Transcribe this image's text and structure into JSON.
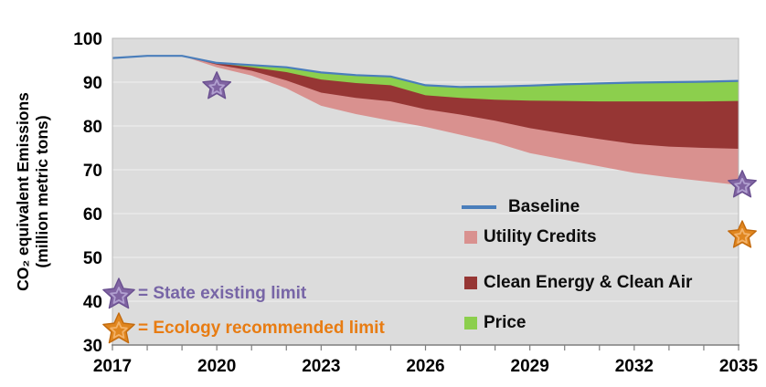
{
  "figure": {
    "y_axis_title_line1": "CO₂ equivalent Emissions",
    "y_axis_title_line2": "(million metric tons)"
  },
  "legend": {
    "baseline": "Baseline",
    "utility": "Utility Credits",
    "clean": "Clean Energy & Clean Air",
    "price": "Price"
  },
  "annotations": {
    "state_limit": "= State existing limit",
    "ecology_limit": "= Ecology recommended limit"
  },
  "colors": {
    "baseline": "#4a7ebb",
    "utility": "#d9918f",
    "clean": "#963634",
    "price": "#8ccf4d",
    "plot_bg": "#dcdcdc",
    "gridline": "#ebebeb",
    "axis": "#7f7f7f",
    "border": "#b8b8b8",
    "tick_text": "#000000",
    "purple_fill": "#8064a2",
    "purple_edge": "#6a5090",
    "purple_highlight": "#b1a0d0",
    "orange_fill": "#e0861f",
    "orange_edge": "#c26a0e",
    "orange_highlight": "#f3b269",
    "text_purple": "#7765a6",
    "text_orange": "#e87c12"
  },
  "chart_data": {
    "type": "area",
    "title": "",
    "xlabel": "",
    "ylabel": "CO₂ equivalent Emissions (million metric tons)",
    "ylim": [
      30,
      100
    ],
    "xlim": [
      2017,
      2035
    ],
    "yticks": [
      30,
      40,
      50,
      60,
      70,
      80,
      90,
      100
    ],
    "xticks": [
      2017,
      2020,
      2023,
      2026,
      2029,
      2032,
      2035
    ],
    "grid": "horizontal",
    "legend_position": "inside-right",
    "x": [
      2017,
      2018,
      2019,
      2020,
      2021,
      2022,
      2023,
      2024,
      2025,
      2026,
      2027,
      2028,
      2029,
      2030,
      2031,
      2032,
      2033,
      2034,
      2035
    ],
    "series": [
      {
        "name": "Baseline",
        "style": "line",
        "values": [
          95.5,
          96.0,
          96.0,
          94.4,
          93.9,
          93.4,
          92.2,
          91.6,
          91.3,
          89.3,
          88.9,
          89.0,
          89.2,
          89.5,
          89.7,
          89.9,
          90.0,
          90.1,
          90.3
        ]
      },
      {
        "name": "Price",
        "style": "area",
        "values": [
          95.5,
          96.0,
          96.0,
          94.3,
          93.4,
          92.3,
          90.6,
          89.8,
          89.3,
          87.0,
          86.4,
          86.0,
          85.8,
          85.7,
          85.6,
          85.6,
          85.6,
          85.6,
          85.7
        ]
      },
      {
        "name": "Clean Energy & Clean Air",
        "style": "area",
        "values": [
          95.5,
          96.0,
          96.0,
          94.0,
          92.6,
          90.4,
          87.6,
          86.4,
          85.6,
          83.8,
          82.6,
          81.2,
          79.5,
          78.2,
          77.0,
          75.9,
          75.3,
          75.0,
          74.8
        ]
      },
      {
        "name": "Utility Credits",
        "style": "area",
        "values": [
          95.5,
          96.0,
          96.0,
          93.4,
          91.5,
          88.6,
          84.6,
          82.7,
          81.2,
          79.8,
          78.0,
          76.2,
          73.8,
          72.3,
          70.8,
          69.3,
          68.3,
          67.4,
          66.5
        ]
      }
    ],
    "markers": [
      {
        "label": "State existing limit",
        "x": 2020,
        "y": 89.0,
        "color": "purple"
      },
      {
        "label": "State existing limit",
        "x": 2035,
        "y": 66.5,
        "color": "purple"
      },
      {
        "label": "Ecology recommended limit",
        "x": 2035,
        "y": 55.0,
        "color": "orange"
      }
    ]
  }
}
